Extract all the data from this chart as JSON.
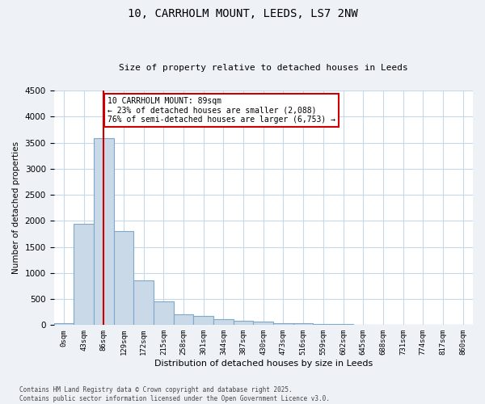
{
  "title_line1": "10, CARRHOLM MOUNT, LEEDS, LS7 2NW",
  "title_line2": "Size of property relative to detached houses in Leeds",
  "xlabel": "Distribution of detached houses by size in Leeds",
  "ylabel": "Number of detached properties",
  "bar_labels": [
    "0sqm",
    "43sqm",
    "86sqm",
    "129sqm",
    "172sqm",
    "215sqm",
    "258sqm",
    "301sqm",
    "344sqm",
    "387sqm",
    "430sqm",
    "473sqm",
    "516sqm",
    "559sqm",
    "602sqm",
    "645sqm",
    "688sqm",
    "731sqm",
    "774sqm",
    "817sqm",
    "860sqm"
  ],
  "bar_values": [
    30,
    1950,
    3580,
    1800,
    850,
    450,
    200,
    170,
    110,
    75,
    60,
    40,
    30,
    20,
    15,
    10,
    8,
    5,
    4,
    3,
    2
  ],
  "bar_color": "#c9d9e8",
  "bar_edgecolor": "#7fa8c9",
  "vline_x": 2,
  "vline_color": "#cc0000",
  "ylim": [
    0,
    4500
  ],
  "yticks": [
    0,
    500,
    1000,
    1500,
    2000,
    2500,
    3000,
    3500,
    4000,
    4500
  ],
  "annotation_text": "10 CARRHOLM MOUNT: 89sqm\n← 23% of detached houses are smaller (2,088)\n76% of semi-detached houses are larger (6,753) →",
  "annotation_box_color": "#cc0000",
  "footer_line1": "Contains HM Land Registry data © Crown copyright and database right 2025.",
  "footer_line2": "Contains public sector information licensed under the Open Government Licence v3.0.",
  "bg_color": "#eef2f7",
  "plot_bg_color": "#ffffff",
  "grid_color": "#c8d8e8"
}
